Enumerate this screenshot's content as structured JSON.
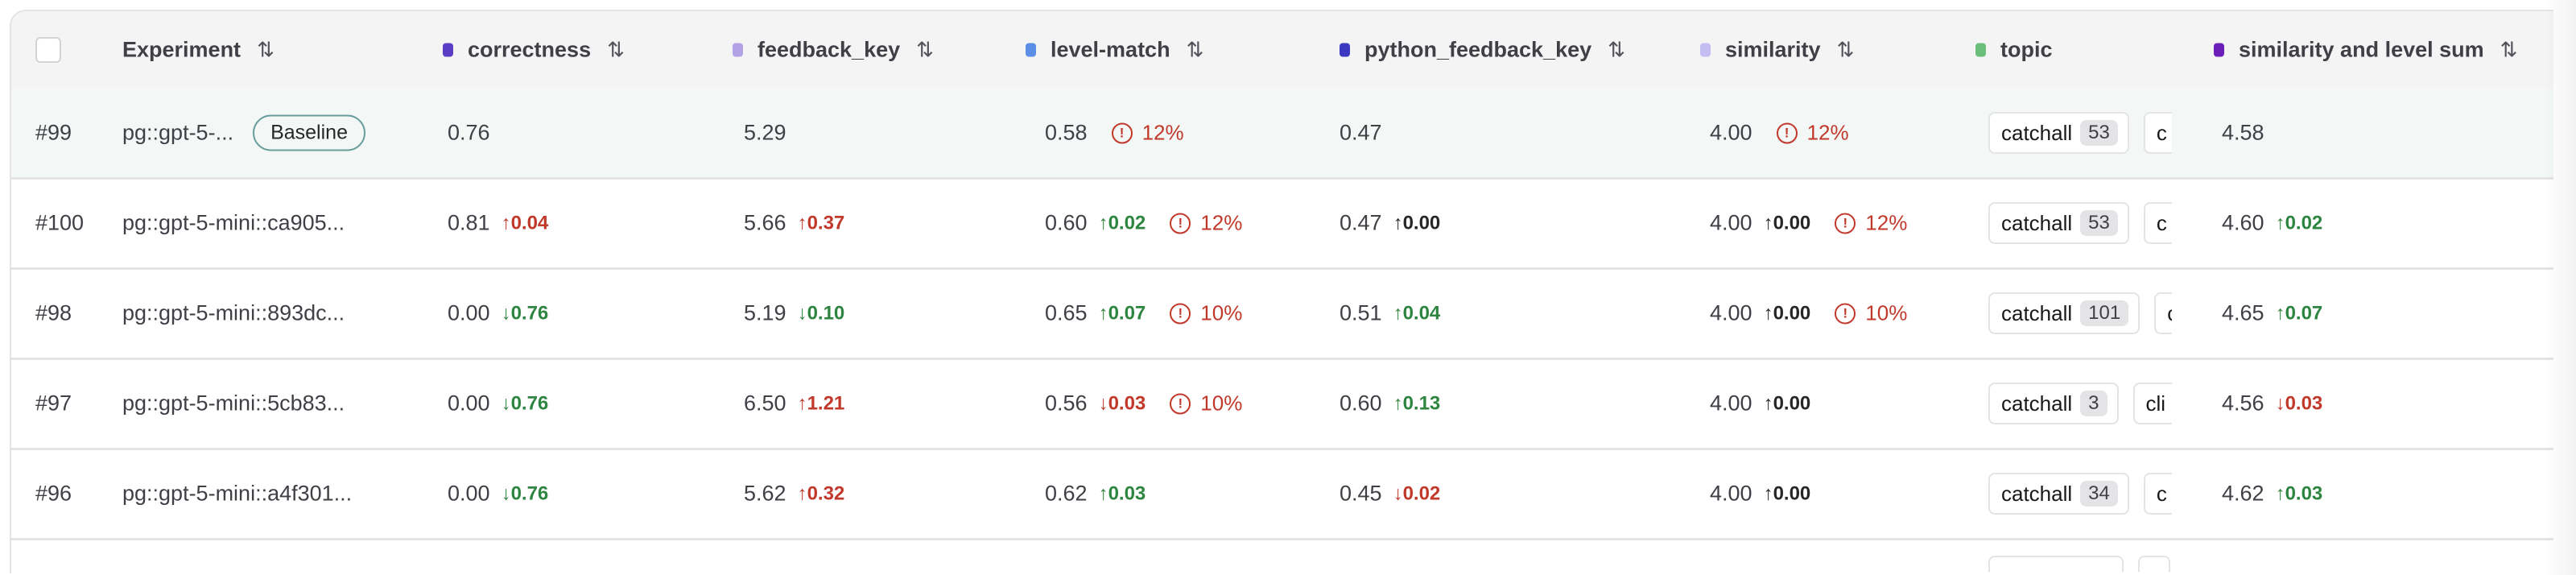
{
  "columns": [
    {
      "label": "Experiment",
      "sortable": true
    },
    {
      "label": "correctness",
      "color": "#5b3cc4",
      "sortable": true
    },
    {
      "label": "feedback_key",
      "color": "#b3a1e6",
      "sortable": true
    },
    {
      "label": "level-match",
      "color": "#5b8fe6",
      "sortable": true
    },
    {
      "label": "python_feedback_key",
      "color": "#3b37c0",
      "sortable": true
    },
    {
      "label": "similarity",
      "color": "#c3bdf2",
      "sortable": true
    },
    {
      "label": "topic",
      "color": "#6cbf7b",
      "sortable": false
    },
    {
      "label": "similarity and level sum",
      "color": "#6b1fb8",
      "sortable": true
    }
  ],
  "sort_icon": "⇅",
  "baseline_label": "Baseline",
  "rows": [
    {
      "id": "#99",
      "name": "pg::gpt-5-...",
      "baseline": true,
      "correctness": {
        "v": "0.76"
      },
      "feedback_key": {
        "v": "5.29"
      },
      "level_match": {
        "v": "0.58",
        "warn": "12%"
      },
      "python": {
        "v": "0.47"
      },
      "similarity": {
        "v": "4.00",
        "warn": "12%"
      },
      "topic": {
        "tag": "catchall",
        "count": "53",
        "next": "c"
      },
      "sum": {
        "v": "4.58"
      }
    },
    {
      "id": "#100",
      "name": "pg::gpt-5-mini::ca905...",
      "correctness": {
        "v": "0.81",
        "d": "↑0.04",
        "t": "bad"
      },
      "feedback_key": {
        "v": "5.66",
        "d": "↑0.37",
        "t": "bad"
      },
      "level_match": {
        "v": "0.60",
        "d": "↑0.02",
        "t": "good",
        "warn": "12%"
      },
      "python": {
        "v": "0.47",
        "d": "↑0.00",
        "t": "neutral"
      },
      "similarity": {
        "v": "4.00",
        "d": "↑0.00",
        "t": "neutral",
        "warn": "12%"
      },
      "topic": {
        "tag": "catchall",
        "count": "53",
        "next": "c"
      },
      "sum": {
        "v": "4.60",
        "d": "↑0.02",
        "t": "good"
      }
    },
    {
      "id": "#98",
      "name": "pg::gpt-5-mini::893dc...",
      "correctness": {
        "v": "0.00",
        "d": "↓0.76",
        "t": "good"
      },
      "feedback_key": {
        "v": "5.19",
        "d": "↓0.10",
        "t": "good"
      },
      "level_match": {
        "v": "0.65",
        "d": "↑0.07",
        "t": "good",
        "warn": "10%"
      },
      "python": {
        "v": "0.51",
        "d": "↑0.04",
        "t": "good"
      },
      "similarity": {
        "v": "4.00",
        "d": "↑0.00",
        "t": "neutral",
        "warn": "10%"
      },
      "topic": {
        "tag": "catchall",
        "count": "101",
        "next": "c"
      },
      "sum": {
        "v": "4.65",
        "d": "↑0.07",
        "t": "good"
      }
    },
    {
      "id": "#97",
      "name": "pg::gpt-5-mini::5cb83...",
      "correctness": {
        "v": "0.00",
        "d": "↓0.76",
        "t": "good"
      },
      "feedback_key": {
        "v": "6.50",
        "d": "↑1.21",
        "t": "bad"
      },
      "level_match": {
        "v": "0.56",
        "d": "↓0.03",
        "t": "bad",
        "warn": "10%"
      },
      "python": {
        "v": "0.60",
        "d": "↑0.13",
        "t": "good"
      },
      "similarity": {
        "v": "4.00",
        "d": "↑0.00",
        "t": "neutral"
      },
      "topic": {
        "tag": "catchall",
        "count": "3",
        "next": "cli"
      },
      "sum": {
        "v": "4.56",
        "d": "↓0.03",
        "t": "bad"
      }
    },
    {
      "id": "#96",
      "name": "pg::gpt-5-mini::a4f301...",
      "correctness": {
        "v": "0.00",
        "d": "↓0.76",
        "t": "good"
      },
      "feedback_key": {
        "v": "5.62",
        "d": "↑0.32",
        "t": "bad"
      },
      "level_match": {
        "v": "0.62",
        "d": "↑0.03",
        "t": "good"
      },
      "python": {
        "v": "0.45",
        "d": "↓0.02",
        "t": "bad"
      },
      "similarity": {
        "v": "4.00",
        "d": "↑0.00",
        "t": "neutral"
      },
      "topic": {
        "tag": "catchall",
        "count": "34",
        "next": "c"
      },
      "sum": {
        "v": "4.62",
        "d": "↑0.03",
        "t": "good"
      }
    }
  ],
  "warn_icon": "!"
}
